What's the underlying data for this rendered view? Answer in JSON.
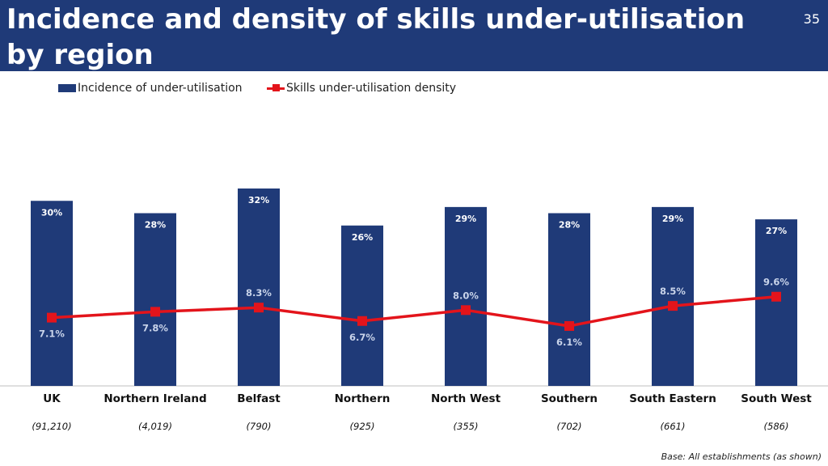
{
  "header": {
    "title": "Incidence and density of skills under-utilisation by region",
    "page_number": "35"
  },
  "legend": {
    "bar_label": "Incidence of under-utilisation",
    "line_label": "Skills under-utilisation density"
  },
  "footnote": "Base: All establishments (as shown)",
  "colors": {
    "bar": "#1f3a78",
    "line": "#e3141b",
    "header": "#1f3a78"
  },
  "chart_data": {
    "type": "bar",
    "categories": [
      "UK",
      "Northern Ireland",
      "Belfast",
      "Northern",
      "North West",
      "Southern",
      "South Eastern",
      "South West"
    ],
    "bases": [
      "(91,210)",
      "(4,019)",
      "(790)",
      "(925)",
      "(355)",
      "(702)",
      "(661)",
      "(586)"
    ],
    "series": [
      {
        "name": "Incidence of under-utilisation",
        "type": "bar",
        "values": [
          30,
          28,
          32,
          26,
          29,
          28,
          29,
          27
        ],
        "labels": [
          "30%",
          "28%",
          "32%",
          "26%",
          "29%",
          "28%",
          "29%",
          "27%"
        ]
      },
      {
        "name": "Skills under-utilisation density",
        "type": "line",
        "values": [
          7.1,
          7.8,
          8.3,
          6.7,
          8.0,
          6.1,
          8.5,
          9.6
        ],
        "labels": [
          "7.1%",
          "7.8%",
          "8.3%",
          "6.7%",
          "8.0%",
          "6.1%",
          "8.5%",
          "9.6%"
        ]
      }
    ],
    "ylim": [
      0,
      32
    ],
    "legend_position": "top-left",
    "grid": false
  }
}
